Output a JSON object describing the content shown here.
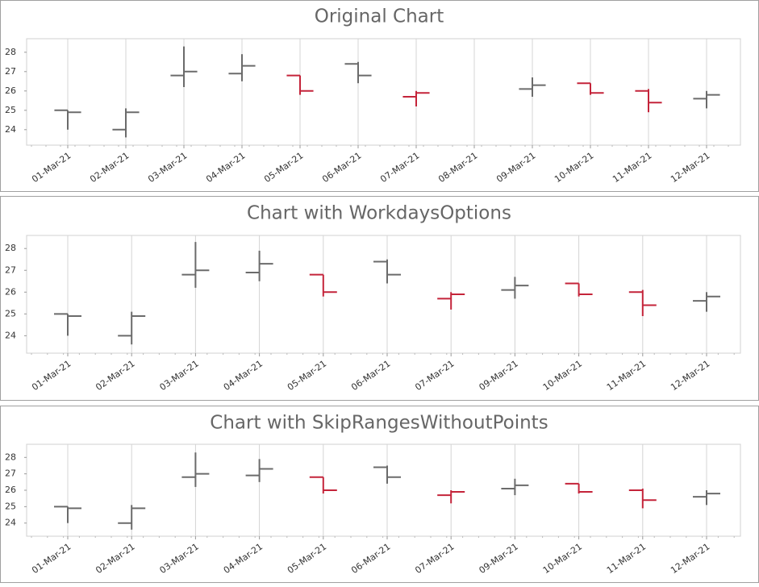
{
  "chart_data": [
    {
      "type": "ohlc",
      "title": "Original Chart",
      "categories": [
        "01-Mar-21",
        "02-Mar-21",
        "03-Mar-21",
        "04-Mar-21",
        "05-Mar-21",
        "06-Mar-21",
        "07-Mar-21",
        "08-Mar-21",
        "09-Mar-21",
        "10-Mar-21",
        "11-Mar-21",
        "12-Mar-21"
      ],
      "open": [
        25.0,
        24.0,
        26.8,
        26.9,
        26.8,
        27.4,
        25.7,
        null,
        26.1,
        26.4,
        26.0,
        25.6
      ],
      "high": [
        25.0,
        25.1,
        28.3,
        27.9,
        26.8,
        27.5,
        26.0,
        null,
        26.7,
        26.4,
        26.1,
        26.0
      ],
      "low": [
        24.0,
        23.6,
        26.2,
        26.5,
        25.8,
        26.4,
        25.2,
        null,
        25.7,
        25.8,
        24.9,
        25.1
      ],
      "close": [
        24.9,
        24.9,
        27.0,
        27.3,
        26.0,
        26.8,
        25.9,
        null,
        26.3,
        25.9,
        25.4,
        25.8
      ],
      "colors": [
        "#6b6b6b",
        "#6b6b6b",
        "#6b6b6b",
        "#6b6b6b",
        "#c4243a",
        "#6b6b6b",
        "#c4243a",
        null,
        "#6b6b6b",
        "#c4243a",
        "#c4243a",
        "#6b6b6b"
      ],
      "ylim": [
        23.2,
        28.7
      ],
      "yticks": [
        24,
        25,
        26,
        27,
        28
      ],
      "grid": true
    },
    {
      "type": "ohlc",
      "title": "Chart with WorkdaysOptions",
      "categories": [
        "01-Mar-21",
        "02-Mar-21",
        "03-Mar-21",
        "04-Mar-21",
        "05-Mar-21",
        "06-Mar-21",
        "07-Mar-21",
        "09-Mar-21",
        "10-Mar-21",
        "11-Mar-21",
        "12-Mar-21"
      ],
      "open": [
        25.0,
        24.0,
        26.8,
        26.9,
        26.8,
        27.4,
        25.7,
        26.1,
        26.4,
        26.0,
        25.6
      ],
      "high": [
        25.0,
        25.1,
        28.3,
        27.9,
        26.8,
        27.5,
        26.0,
        26.7,
        26.4,
        26.1,
        26.0
      ],
      "low": [
        24.0,
        23.6,
        26.2,
        26.5,
        25.8,
        26.4,
        25.2,
        25.7,
        25.8,
        24.9,
        25.1
      ],
      "close": [
        24.9,
        24.9,
        27.0,
        27.3,
        26.0,
        26.8,
        25.9,
        26.3,
        25.9,
        25.4,
        25.8
      ],
      "colors": [
        "#6b6b6b",
        "#6b6b6b",
        "#6b6b6b",
        "#6b6b6b",
        "#c4243a",
        "#6b6b6b",
        "#c4243a",
        "#6b6b6b",
        "#c4243a",
        "#c4243a",
        "#6b6b6b"
      ],
      "ylim": [
        23.2,
        28.6
      ],
      "yticks": [
        24,
        25,
        26,
        27,
        28
      ],
      "grid": true
    },
    {
      "type": "ohlc",
      "title": "Chart with SkipRangesWithoutPoints",
      "categories": [
        "01-Mar-21",
        "02-Mar-21",
        "03-Mar-21",
        "04-Mar-21",
        "05-Mar-21",
        "06-Mar-21",
        "07-Mar-21",
        "09-Mar-21",
        "10-Mar-21",
        "11-Mar-21",
        "12-Mar-21"
      ],
      "open": [
        25.0,
        24.0,
        26.8,
        26.9,
        26.8,
        27.4,
        25.7,
        26.1,
        26.4,
        26.0,
        25.6
      ],
      "high": [
        25.0,
        25.1,
        28.3,
        27.9,
        26.8,
        27.5,
        26.0,
        26.7,
        26.4,
        26.1,
        26.0
      ],
      "low": [
        24.0,
        23.6,
        26.2,
        26.5,
        25.8,
        26.4,
        25.2,
        25.7,
        25.8,
        24.9,
        25.1
      ],
      "close": [
        24.9,
        24.9,
        27.0,
        27.3,
        26.0,
        26.8,
        25.9,
        26.3,
        25.9,
        25.4,
        25.8
      ],
      "colors": [
        "#6b6b6b",
        "#6b6b6b",
        "#6b6b6b",
        "#6b6b6b",
        "#c4243a",
        "#6b6b6b",
        "#c4243a",
        "#6b6b6b",
        "#c4243a",
        "#c4243a",
        "#6b6b6b"
      ],
      "ylim": [
        23.2,
        28.8
      ],
      "yticks": [
        24,
        25,
        26,
        27,
        28
      ],
      "grid": true
    }
  ]
}
